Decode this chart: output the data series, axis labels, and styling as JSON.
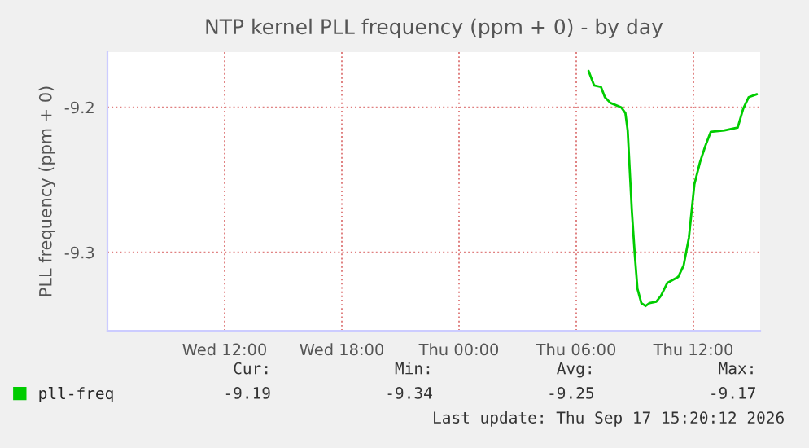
{
  "chart_data": {
    "type": "line",
    "title": "NTP kernel PLL frequency (ppm + 0) - by day",
    "ylabel": "PLL frequency (ppm + 0)",
    "x": [
      "2026-09-17T06:38",
      "2026-09-17T06:55",
      "2026-09-17T07:16",
      "2026-09-17T07:28",
      "2026-09-17T07:45",
      "2026-09-17T08:18",
      "2026-09-17T08:31",
      "2026-09-17T08:38",
      "2026-09-17T08:51",
      "2026-09-17T09:00",
      "2026-09-17T09:08",
      "2026-09-17T09:20",
      "2026-09-17T09:33",
      "2026-09-17T09:45",
      "2026-09-17T10:06",
      "2026-09-17T10:20",
      "2026-09-17T10:40",
      "2026-09-17T11:13",
      "2026-09-17T11:30",
      "2026-09-17T11:46",
      "2026-09-17T12:03",
      "2026-09-17T12:20",
      "2026-09-17T12:36",
      "2026-09-17T12:53",
      "2026-09-17T13:35",
      "2026-09-17T14:16",
      "2026-09-17T14:33",
      "2026-09-17T14:50",
      "2026-09-17T15:15"
    ],
    "series": [
      {
        "name": "pll-freq",
        "color": "#00cc00",
        "values": [
          -9.175,
          -9.185,
          -9.186,
          -9.193,
          -9.197,
          -9.2,
          -9.204,
          -9.216,
          -9.272,
          -9.302,
          -9.325,
          -9.335,
          -9.337,
          -9.335,
          -9.334,
          -9.33,
          -9.321,
          -9.317,
          -9.309,
          -9.29,
          -9.253,
          -9.238,
          -9.227,
          -9.217,
          -9.216,
          -9.214,
          -9.201,
          -9.193,
          -9.191
        ]
      }
    ],
    "xlim": [
      "2026-09-16T06:00",
      "2026-09-17T15:25"
    ],
    "xticks": [
      {
        "value": "2026-09-16T12:00",
        "label": "Wed 12:00"
      },
      {
        "value": "2026-09-16T18:00",
        "label": "Wed 18:00"
      },
      {
        "value": "2026-09-17T00:00",
        "label": "Thu 00:00"
      },
      {
        "value": "2026-09-17T06:00",
        "label": "Thu 06:00"
      },
      {
        "value": "2026-09-17T12:00",
        "label": "Thu 12:00"
      }
    ],
    "ylim": [
      -9.354,
      -9.162
    ],
    "yticks": [
      -9.3,
      -9.2
    ],
    "grid": true,
    "legend": "bottom left",
    "line_style": "solid",
    "marker": "none",
    "annotations": [
      "Cur:",
      "Min:",
      "Avg:",
      "Max:",
      "-9.19",
      "-9.34",
      "-9.25",
      "-9.17",
      "Last update: Thu Sep 17 15:20:12 2026"
    ]
  }
}
